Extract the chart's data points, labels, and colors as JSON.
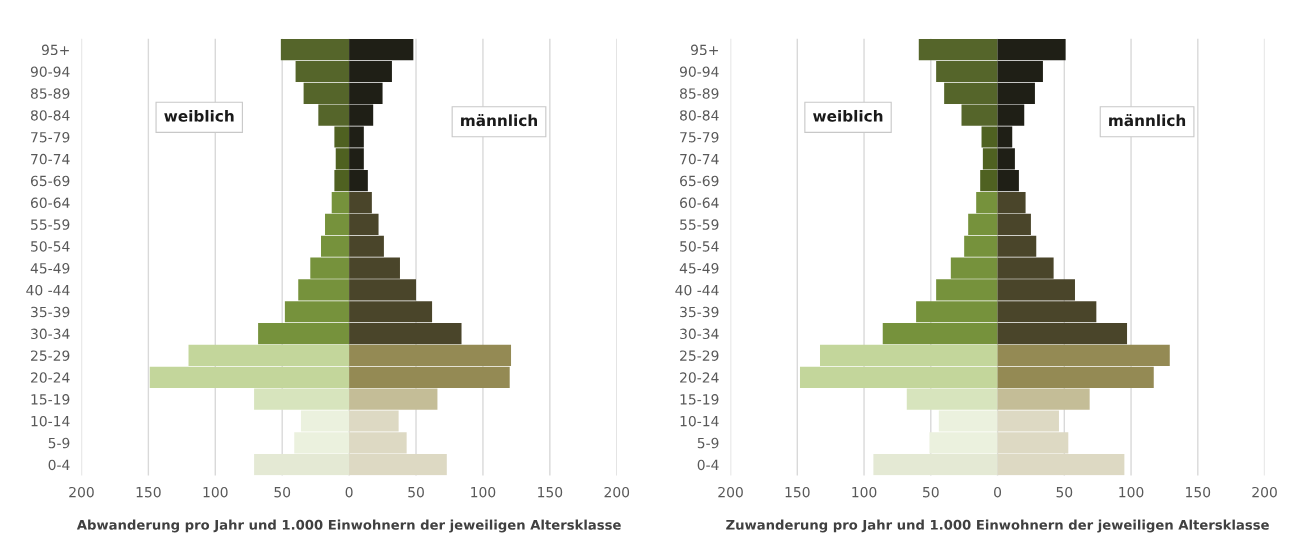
{
  "chart_data": [
    {
      "type": "bar",
      "orientation": "horizontal",
      "stacked": true,
      "annotations": [
        "weiblich",
        "männlich"
      ],
      "xlabel": "Abwanderung pro Jahr und 1.000 Einwohnern der jeweiligen Altersklasse",
      "categories": [
        "95+",
        "90-94",
        "85-89",
        "80-84",
        "75-79",
        "70-74",
        "65-69",
        "60-64",
        "55-59",
        "50-54",
        "45-49",
        "40 -44",
        "35-39",
        "30-34",
        "25-29",
        "20-24",
        "15-19",
        "10-14",
        "5-9",
        "0-4"
      ],
      "series": [
        {
          "values": [
            -51,
            -40,
            -34,
            -23,
            -11,
            -10,
            -11,
            -13,
            -18,
            -21,
            -29,
            -38,
            -48,
            -68,
            -120,
            -149,
            -71,
            -36,
            -41,
            -71
          ],
          "colors": [
            "#55652a",
            "#55652a",
            "#55652a",
            "#55652a",
            "#4f6121",
            "#4f6121",
            "#4f6121",
            "#76923c",
            "#76923c",
            "#76923c",
            "#76923c",
            "#76923c",
            "#76923c",
            "#76923c",
            "#c3d69b",
            "#c3d69b",
            "#d7e4bd",
            "#ebf1de",
            "#ebf1de",
            "#e4e9d4"
          ]
        },
        {
          "values": [
            48,
            32,
            25,
            18,
            11,
            11,
            14,
            17,
            22,
            26,
            38,
            50,
            62,
            84,
            121,
            120,
            66,
            37,
            43,
            73
          ],
          "colors": [
            "#1f1f16",
            "#1f1f16",
            "#1f1f16",
            "#1f1f16",
            "#1f1f16",
            "#1f1f16",
            "#1f1f16",
            "#4a452a",
            "#4a452a",
            "#4a452a",
            "#4a452a",
            "#4a452a",
            "#4a452a",
            "#4a452a",
            "#948a54",
            "#948a54",
            "#c4bd97",
            "#ddd9c3",
            "#ddd9c3",
            "#ddd9c3"
          ]
        }
      ],
      "xlim": [
        -200,
        200
      ],
      "xticks": [
        {
          "value": -200,
          "label": "200"
        },
        {
          "value": -150,
          "label": "150"
        },
        {
          "value": -100,
          "label": "100"
        },
        {
          "value": -50,
          "label": "50"
        },
        0,
        50,
        100,
        150,
        200
      ],
      "grid": "x"
    },
    {
      "type": "bar",
      "orientation": "horizontal",
      "stacked": true,
      "annotations": [
        "weiblich",
        "männlich"
      ],
      "xlabel": "Zuwanderung pro Jahr und 1.000 Einwohnern der jeweiligen Altersklasse",
      "categories": [
        "95+",
        "90-94",
        "85-89",
        "80-84",
        "75-79",
        "70-74",
        "65-69",
        "60-64",
        "55-59",
        "50-54",
        "45-49",
        "40 -44",
        "35-39",
        "30-34",
        "25-29",
        "20-24",
        "15-19",
        "10-14",
        "5-9",
        "0-4"
      ],
      "series": [
        {
          "values": [
            -59,
            -46,
            -40,
            -27,
            -12,
            -11,
            -13,
            -16,
            -22,
            -25,
            -35,
            -46,
            -61,
            -86,
            -133,
            -148,
            -68,
            -44,
            -51,
            -93
          ],
          "colors": [
            "#55652a",
            "#55652a",
            "#55652a",
            "#55652a",
            "#4f6121",
            "#4f6121",
            "#4f6121",
            "#76923c",
            "#76923c",
            "#76923c",
            "#76923c",
            "#76923c",
            "#76923c",
            "#76923c",
            "#c3d69b",
            "#c3d69b",
            "#d7e4bd",
            "#ebf1de",
            "#ebf1de",
            "#e4e9d4"
          ]
        },
        {
          "values": [
            51,
            34,
            28,
            20,
            11,
            13,
            16,
            21,
            25,
            29,
            42,
            58,
            74,
            97,
            129,
            117,
            69,
            46,
            53,
            95
          ],
          "colors": [
            "#1f1f16",
            "#1f1f16",
            "#1f1f16",
            "#1f1f16",
            "#1f1f16",
            "#1f1f16",
            "#1f1f16",
            "#4a452a",
            "#4a452a",
            "#4a452a",
            "#4a452a",
            "#4a452a",
            "#4a452a",
            "#4a452a",
            "#948a54",
            "#948a54",
            "#c4bd97",
            "#ddd9c3",
            "#ddd9c3",
            "#ddd9c3"
          ]
        }
      ],
      "xlim": [
        -200,
        200
      ],
      "xticks": [
        {
          "value": -200,
          "label": "200"
        },
        {
          "value": -150,
          "label": "150"
        },
        {
          "value": -100,
          "label": "100"
        },
        {
          "value": -50,
          "label": "50"
        },
        0,
        50,
        100,
        150,
        200
      ],
      "grid": "x"
    }
  ]
}
